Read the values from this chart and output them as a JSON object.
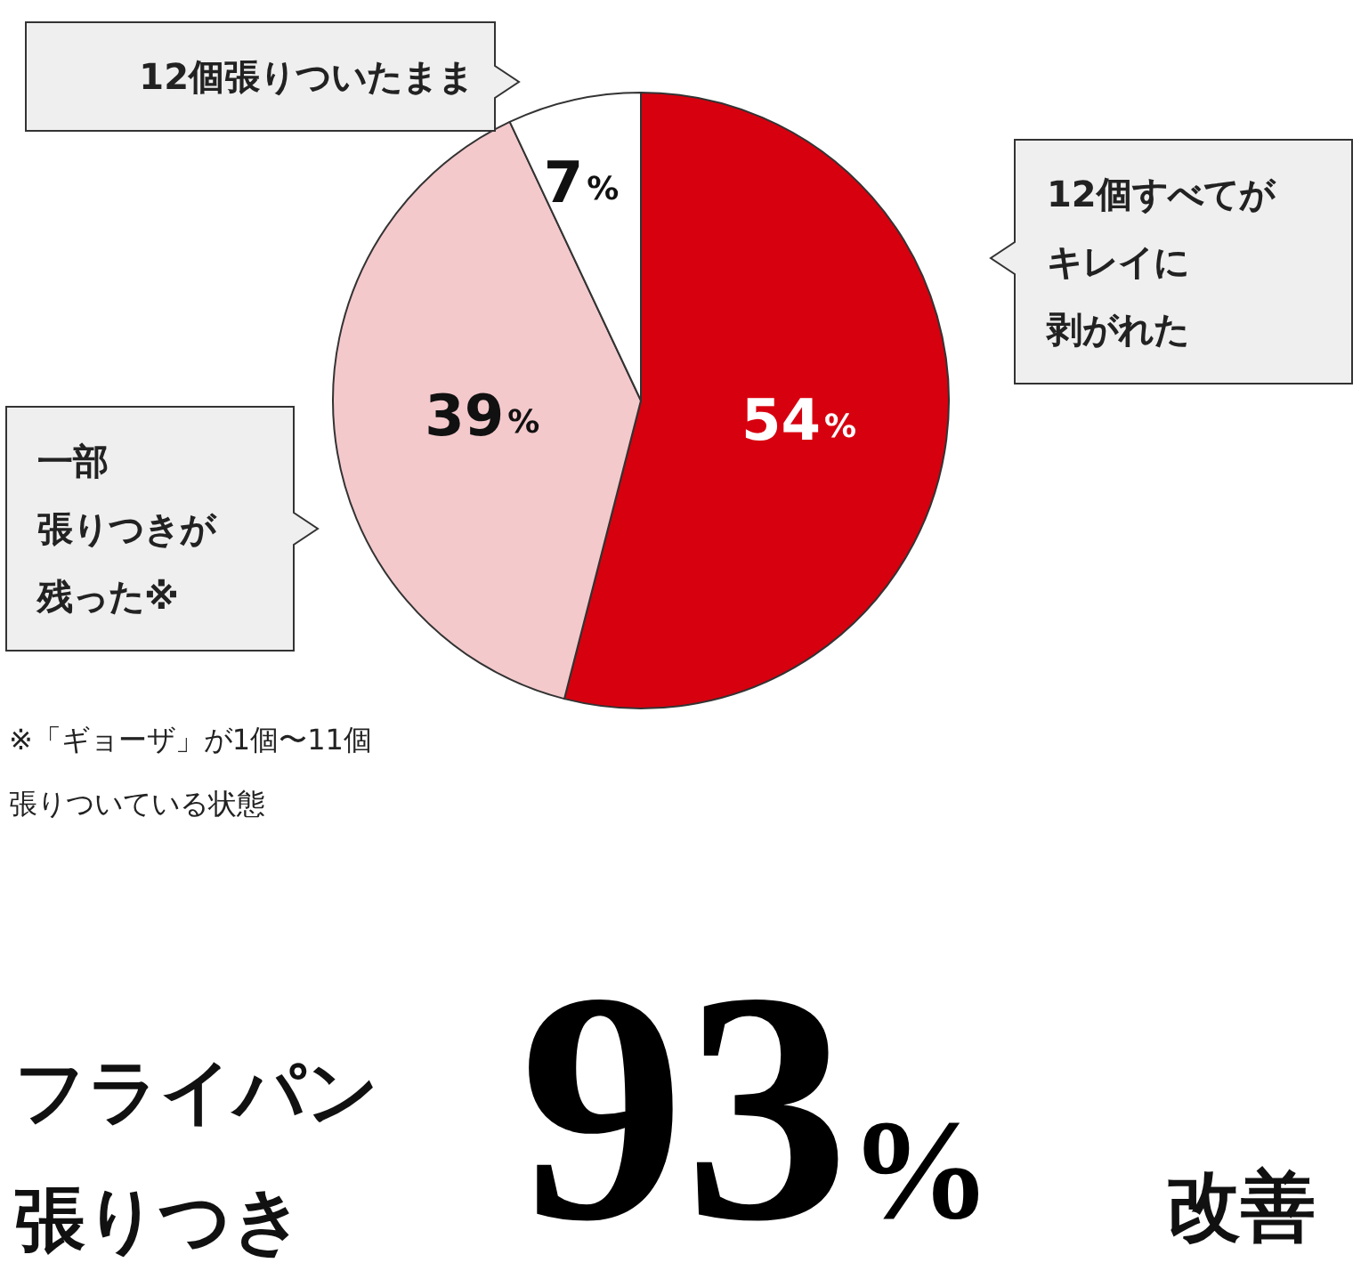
{
  "chart_data": {
    "type": "pie",
    "categories": [
      "12個すべてがキレイに剥がれた",
      "一部張りつきが残った※",
      "12個張りついたまま"
    ],
    "values": [
      54,
      39,
      7
    ],
    "colors": [
      "#d7000f",
      "#f4c9cc",
      "#ffffff"
    ],
    "value_labels": [
      "54%",
      "39%",
      "7%"
    ],
    "legend": false,
    "annotations": [
      "※「ギョーザ」が1個〜11個張りついている状態",
      "フライパン張りつき",
      "93%",
      "改善"
    ]
  }
}
